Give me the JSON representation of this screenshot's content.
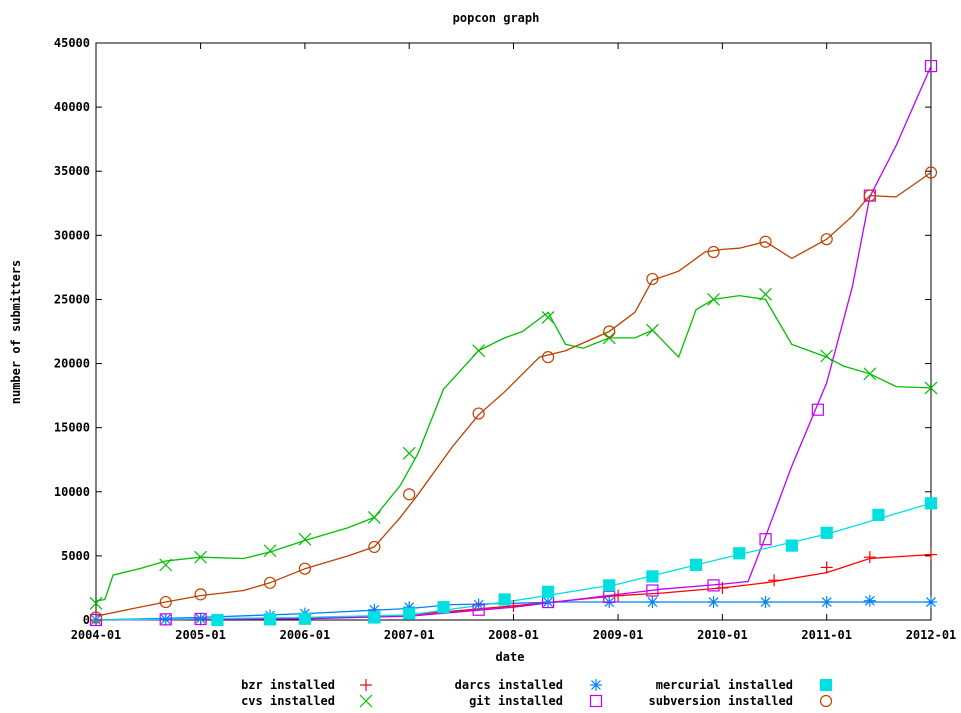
{
  "chart_data": {
    "type": "line",
    "title": "popcon graph",
    "xlabel": "date",
    "ylabel": "number of submitters",
    "x_ticks": [
      "2004-01",
      "2005-01",
      "2006-01",
      "2007-01",
      "2008-01",
      "2009-01",
      "2010-01",
      "2011-01",
      "2012-01"
    ],
    "y_ticks": [
      "0",
      "5000",
      "10000",
      "15000",
      "20000",
      "25000",
      "30000",
      "35000",
      "40000",
      "45000"
    ],
    "xlim": [
      "2004-01",
      "2012-01"
    ],
    "ylim": [
      0,
      45000
    ],
    "grid": false,
    "legend_position": "bottom",
    "series": [
      {
        "name": "bzr installed",
        "color": "#ff0000",
        "marker": "plus",
        "points": [
          [
            "2004-01",
            0
          ],
          [
            "2006-01",
            100
          ],
          [
            "2007-01",
            400
          ],
          [
            "2008-01",
            1100
          ],
          [
            "2009-01",
            1900
          ],
          [
            "2009-06",
            2100
          ],
          [
            "2010-01",
            2500
          ],
          [
            "2010-06",
            2900
          ],
          [
            "2011-01",
            3700
          ],
          [
            "2011-06",
            4800
          ],
          [
            "2012-01",
            5100
          ]
        ],
        "markers": [
          [
            "2004-01",
            0
          ],
          [
            "2005-01",
            50
          ],
          [
            "2006-01",
            100
          ],
          [
            "2007-01",
            400
          ],
          [
            "2008-01",
            1100
          ],
          [
            "2009-01",
            1900
          ],
          [
            "2010-01",
            2500
          ],
          [
            "2010-07",
            3100
          ],
          [
            "2011-01",
            4100
          ],
          [
            "2011-06",
            4900
          ],
          [
            "2012-01",
            5100
          ]
        ]
      },
      {
        "name": "cvs installed",
        "color": "#00c000",
        "marker": "cross",
        "points": [
          [
            "2004-01",
            1500
          ],
          [
            "2004-02",
            1600
          ],
          [
            "2004-03",
            3500
          ],
          [
            "2004-06",
            4000
          ],
          [
            "2004-09",
            4600
          ],
          [
            "2005-01",
            4900
          ],
          [
            "2005-06",
            4800
          ],
          [
            "2005-09",
            5300
          ],
          [
            "2006-01",
            6200
          ],
          [
            "2006-06",
            7200
          ],
          [
            "2006-09",
            8000
          ],
          [
            "2006-12",
            10500
          ],
          [
            "2007-02",
            13000
          ],
          [
            "2007-05",
            18000
          ],
          [
            "2007-09",
            21000
          ],
          [
            "2007-12",
            22000
          ],
          [
            "2008-02",
            22500
          ],
          [
            "2008-05",
            24000
          ],
          [
            "2008-07",
            21500
          ],
          [
            "2008-09",
            21200
          ],
          [
            "2008-12",
            22000
          ],
          [
            "2009-03",
            22000
          ],
          [
            "2009-05",
            22600
          ],
          [
            "2009-08",
            20500
          ],
          [
            "2009-10",
            24200
          ],
          [
            "2009-12",
            25000
          ],
          [
            "2010-03",
            25300
          ],
          [
            "2010-06",
            25000
          ],
          [
            "2010-09",
            21500
          ],
          [
            "2011-01",
            20500
          ],
          [
            "2011-03",
            19800
          ],
          [
            "2011-06",
            19200
          ],
          [
            "2011-09",
            18200
          ],
          [
            "2012-01",
            18100
          ]
        ],
        "markers": [
          [
            "2004-01",
            1300
          ],
          [
            "2004-09",
            4300
          ],
          [
            "2005-01",
            4900
          ],
          [
            "2005-09",
            5400
          ],
          [
            "2006-01",
            6300
          ],
          [
            "2006-09",
            8000
          ],
          [
            "2007-01",
            13000
          ],
          [
            "2007-09",
            21000
          ],
          [
            "2008-05",
            23600
          ],
          [
            "2008-12",
            22000
          ],
          [
            "2009-05",
            22600
          ],
          [
            "2009-12",
            25000
          ],
          [
            "2010-06",
            25400
          ],
          [
            "2011-01",
            20600
          ],
          [
            "2011-06",
            19200
          ],
          [
            "2012-01",
            18100
          ]
        ]
      },
      {
        "name": "darcs installed",
        "color": "#0080ff",
        "marker": "star",
        "points": [
          [
            "2004-01",
            0
          ],
          [
            "2005-01",
            200
          ],
          [
            "2006-01",
            500
          ],
          [
            "2007-01",
            900
          ],
          [
            "2007-06",
            1200
          ],
          [
            "2008-01",
            1300
          ],
          [
            "2008-06",
            1400
          ],
          [
            "2009-01",
            1400
          ],
          [
            "2010-01",
            1400
          ],
          [
            "2011-01",
            1400
          ],
          [
            "2012-01",
            1400
          ]
        ],
        "markers": [
          [
            "2004-01",
            0
          ],
          [
            "2004-09",
            50
          ],
          [
            "2005-01",
            100
          ],
          [
            "2005-09",
            350
          ],
          [
            "2006-01",
            500
          ],
          [
            "2006-09",
            800
          ],
          [
            "2007-01",
            1000
          ],
          [
            "2007-09",
            1200
          ],
          [
            "2008-05",
            1400
          ],
          [
            "2008-12",
            1400
          ],
          [
            "2009-05",
            1400
          ],
          [
            "2009-12",
            1400
          ],
          [
            "2010-06",
            1400
          ],
          [
            "2011-01",
            1400
          ],
          [
            "2011-06",
            1500
          ],
          [
            "2012-01",
            1400
          ]
        ]
      },
      {
        "name": "git installed",
        "color": "#c000ff",
        "marker": "square",
        "points": [
          [
            "2004-01",
            0
          ],
          [
            "2006-01",
            100
          ],
          [
            "2007-01",
            300
          ],
          [
            "2008-01",
            1000
          ],
          [
            "2009-01",
            2000
          ],
          [
            "2009-06",
            2400
          ],
          [
            "2010-01",
            2800
          ],
          [
            "2010-04",
            3000
          ],
          [
            "2010-06",
            6500
          ],
          [
            "2010-09",
            12000
          ],
          [
            "2011-01",
            18500
          ],
          [
            "2011-04",
            26000
          ],
          [
            "2011-06",
            33000
          ],
          [
            "2011-09",
            37000
          ],
          [
            "2012-01",
            43200
          ]
        ],
        "markers": [
          [
            "2004-01",
            0
          ],
          [
            "2004-09",
            50
          ],
          [
            "2005-01",
            80
          ],
          [
            "2006-09",
            200
          ],
          [
            "2007-09",
            800
          ],
          [
            "2008-05",
            1400
          ],
          [
            "2008-12",
            1800
          ],
          [
            "2009-05",
            2300
          ],
          [
            "2009-12",
            2700
          ],
          [
            "2010-06",
            6300
          ],
          [
            "2010-12",
            16400
          ],
          [
            "2011-06",
            33100
          ],
          [
            "2012-01",
            43200
          ]
        ]
      },
      {
        "name": "mercurial installed",
        "color": "#00e0e0",
        "marker": "filled-square",
        "points": [
          [
            "2004-01",
            0
          ],
          [
            "2005-01",
            100
          ],
          [
            "2006-01",
            200
          ],
          [
            "2007-01",
            400
          ],
          [
            "2008-01",
            1500
          ],
          [
            "2009-01",
            2800
          ],
          [
            "2010-01",
            4800
          ],
          [
            "2011-01",
            6700
          ],
          [
            "2012-01",
            9100
          ]
        ],
        "markers": [
          [
            "2005-03",
            0
          ],
          [
            "2005-09",
            50
          ],
          [
            "2006-01",
            100
          ],
          [
            "2006-09",
            200
          ],
          [
            "2007-01",
            500
          ],
          [
            "2007-05",
            1000
          ],
          [
            "2007-12",
            1600
          ],
          [
            "2008-05",
            2200
          ],
          [
            "2008-12",
            2700
          ],
          [
            "2009-05",
            3400
          ],
          [
            "2009-10",
            4300
          ],
          [
            "2010-03",
            5200
          ],
          [
            "2010-09",
            5800
          ],
          [
            "2011-01",
            6800
          ],
          [
            "2011-07",
            8200
          ],
          [
            "2012-01",
            9100
          ]
        ]
      },
      {
        "name": "subversion installed",
        "color": "#c04000",
        "marker": "circle",
        "points": [
          [
            "2004-01",
            300
          ],
          [
            "2004-06",
            1000
          ],
          [
            "2004-09",
            1400
          ],
          [
            "2005-01",
            1900
          ],
          [
            "2005-06",
            2300
          ],
          [
            "2005-09",
            2900
          ],
          [
            "2006-01",
            4000
          ],
          [
            "2006-06",
            5000
          ],
          [
            "2006-09",
            5700
          ],
          [
            "2006-12",
            8000
          ],
          [
            "2007-02",
            9800
          ],
          [
            "2007-06",
            13500
          ],
          [
            "2007-09",
            16000
          ],
          [
            "2007-12",
            17800
          ],
          [
            "2008-04",
            20500
          ],
          [
            "2008-07",
            21000
          ],
          [
            "2008-12",
            22500
          ],
          [
            "2009-03",
            24000
          ],
          [
            "2009-05",
            26500
          ],
          [
            "2009-08",
            27200
          ],
          [
            "2009-11",
            28700
          ],
          [
            "2010-01",
            28900
          ],
          [
            "2010-03",
            29000
          ],
          [
            "2010-06",
            29500
          ],
          [
            "2010-09",
            28200
          ],
          [
            "2011-01",
            29700
          ],
          [
            "2011-04",
            31500
          ],
          [
            "2011-06",
            33100
          ],
          [
            "2011-09",
            33000
          ],
          [
            "2012-01",
            34900
          ]
        ],
        "markers": [
          [
            "2004-01",
            200
          ],
          [
            "2004-09",
            1400
          ],
          [
            "2005-01",
            2000
          ],
          [
            "2005-09",
            2900
          ],
          [
            "2006-01",
            4000
          ],
          [
            "2006-09",
            5700
          ],
          [
            "2007-01",
            9800
          ],
          [
            "2007-09",
            16100
          ],
          [
            "2008-05",
            20500
          ],
          [
            "2008-12",
            22500
          ],
          [
            "2009-05",
            26600
          ],
          [
            "2009-12",
            28700
          ],
          [
            "2010-06",
            29500
          ],
          [
            "2011-01",
            29700
          ],
          [
            "2011-06",
            33100
          ],
          [
            "2012-01",
            34900
          ]
        ]
      }
    ]
  }
}
